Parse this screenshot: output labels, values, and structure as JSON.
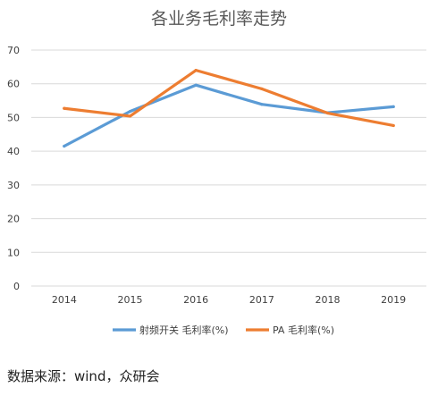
{
  "chart_data": {
    "type": "line",
    "title": "各业务毛利率走势",
    "categories": [
      "2014",
      "2015",
      "2016",
      "2017",
      "2018",
      "2019"
    ],
    "ylim": [
      0,
      70
    ],
    "yticks": [
      0,
      10,
      20,
      30,
      40,
      50,
      60,
      70
    ],
    "grid": true,
    "legend": "bottom",
    "series": [
      {
        "name": "射频开关 毛利率(%)",
        "color": "#5B9BD5",
        "values": [
          41.5,
          51.8,
          59.6,
          53.9,
          51.4,
          53.2
        ]
      },
      {
        "name": "PA 毛利率(%)",
        "color": "#ED7D31",
        "values": [
          52.7,
          50.4,
          64.0,
          58.5,
          51.3,
          47.6
        ]
      }
    ]
  },
  "source_note": "数据来源：wind，众研会"
}
